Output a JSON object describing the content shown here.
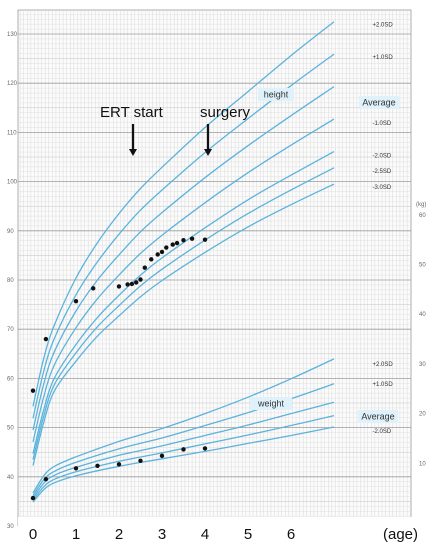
{
  "chart_data": {
    "type": "line",
    "x_ticks": [
      0,
      1,
      2,
      3,
      4,
      5,
      6
    ],
    "x_unit_label": "(age)",
    "height_axis": {
      "ylim": [
        30,
        130
      ],
      "ticks": [
        30,
        40,
        50,
        60,
        70,
        80,
        90,
        100,
        110,
        120,
        130
      ]
    },
    "weight_axis": {
      "unit": "(kg)",
      "ylim": [
        0,
        60
      ],
      "ticks": [
        10,
        20,
        30,
        40,
        50,
        60
      ]
    },
    "height_curves": {
      "label": "height",
      "series": [
        {
          "name": "+2.0SD",
          "x": [
            0,
            0.25,
            0.5,
            1,
            1.5,
            2,
            2.5,
            3,
            4,
            5,
            6,
            7
          ],
          "values": [
            54.3,
            64.1,
            70.9,
            80.4,
            87.6,
            93.5,
            98.6,
            102.9,
            111.0,
            118.3,
            125.6,
            132.5
          ]
        },
        {
          "name": "+1.0SD",
          "x": [
            0,
            0.25,
            0.5,
            1,
            1.5,
            2,
            2.5,
            3,
            4,
            5,
            6,
            7
          ],
          "values": [
            51.9,
            61.5,
            68.2,
            77.0,
            83.7,
            89.3,
            94.2,
            98.3,
            105.9,
            112.8,
            119.5,
            125.9
          ]
        },
        {
          "name": "Average",
          "x": [
            0,
            0.25,
            0.5,
            1,
            1.5,
            2,
            2.5,
            3,
            4,
            5,
            6,
            7
          ],
          "values": [
            49.5,
            58.9,
            65.5,
            73.7,
            80.0,
            85.1,
            89.8,
            93.7,
            100.8,
            107.3,
            113.4,
            119.3
          ]
        },
        {
          "name": "-1.0SD",
          "x": [
            0,
            0.25,
            0.5,
            1,
            1.5,
            2,
            2.5,
            3,
            4,
            5,
            6,
            7
          ],
          "values": [
            47.1,
            56.3,
            62.8,
            70.3,
            76.2,
            81.0,
            85.4,
            89.1,
            95.7,
            101.8,
            107.4,
            112.7
          ]
        },
        {
          "name": "-2.0SD",
          "x": [
            0,
            0.25,
            0.5,
            1,
            1.5,
            2,
            2.5,
            3,
            4,
            5,
            6,
            7
          ],
          "values": [
            44.7,
            53.7,
            60.1,
            66.9,
            72.4,
            76.9,
            81.0,
            84.5,
            90.6,
            96.3,
            101.3,
            106.1
          ]
        },
        {
          "name": "-2.5SD",
          "x": [
            0,
            0.25,
            0.5,
            1,
            1.5,
            2,
            2.5,
            3,
            4,
            5,
            6,
            7
          ],
          "values": [
            43.5,
            52.4,
            58.8,
            65.2,
            70.5,
            74.8,
            78.8,
            82.2,
            88.1,
            93.5,
            98.3,
            102.8
          ]
        },
        {
          "name": "-3.0SD",
          "x": [
            0,
            0.25,
            0.5,
            1,
            1.5,
            2,
            2.5,
            3,
            4,
            5,
            6,
            7
          ],
          "values": [
            42.3,
            51.1,
            57.5,
            63.5,
            68.6,
            72.7,
            76.6,
            79.9,
            85.6,
            90.8,
            95.3,
            99.5
          ]
        }
      ]
    },
    "weight_curves": {
      "label": "weight",
      "series": [
        {
          "name": "+2.0SD",
          "x": [
            0,
            0.25,
            0.5,
            1,
            2,
            3,
            4,
            5,
            6,
            7
          ],
          "values": [
            4.0,
            7.5,
            9.4,
            11.3,
            14.4,
            17.0,
            20.0,
            23.3,
            27.0,
            31.0
          ]
        },
        {
          "name": "+1.0SD",
          "x": [
            0,
            0.25,
            0.5,
            1,
            2,
            3,
            4,
            5,
            6,
            7
          ],
          "values": [
            3.5,
            6.7,
            8.4,
            10.2,
            12.9,
            15.1,
            17.6,
            20.2,
            23.0,
            26.0
          ]
        },
        {
          "name": "Average",
          "x": [
            0,
            0.25,
            0.5,
            1,
            2,
            3,
            4,
            5,
            6,
            7
          ],
          "values": [
            3.0,
            6.0,
            7.6,
            9.2,
            11.6,
            13.5,
            15.6,
            17.7,
            20.0,
            22.3
          ]
        },
        {
          "name": "-1.0SD",
          "x": [
            0,
            0.25,
            0.5,
            1,
            2,
            3,
            4,
            5,
            6,
            7
          ],
          "values": [
            2.6,
            5.3,
            6.8,
            8.3,
            10.4,
            12.1,
            13.9,
            15.7,
            17.6,
            19.6
          ]
        },
        {
          "name": "-2.0SD",
          "x": [
            0,
            0.25,
            0.5,
            1,
            2,
            3,
            4,
            5,
            6,
            7
          ],
          "values": [
            2.2,
            4.7,
            6.1,
            7.5,
            9.4,
            10.9,
            12.4,
            14.0,
            15.6,
            17.3
          ]
        }
      ]
    },
    "patient_height": {
      "x": [
        0,
        0.3,
        1.0,
        1.4,
        2.0,
        2.2,
        2.3,
        2.4,
        2.5,
        2.6,
        2.75,
        2.9,
        3.0,
        3.1,
        3.25,
        3.35,
        3.5,
        3.7,
        4.0
      ],
      "values": [
        57.5,
        68.0,
        75.7,
        78.3,
        78.7,
        79.1,
        79.2,
        79.5,
        80.1,
        82.5,
        84.2,
        85.2,
        85.7,
        86.6,
        87.2,
        87.5,
        88.1,
        88.4,
        88.2
      ]
    },
    "patient_weight": {
      "x": [
        0,
        0.3,
        1.0,
        1.5,
        2.0,
        2.5,
        3.0,
        3.5,
        4.0
      ],
      "values": [
        3.0,
        6.8,
        9.0,
        9.5,
        9.8,
        10.5,
        11.5,
        12.8,
        13.0
      ]
    },
    "annotations": [
      {
        "text": "ERT start",
        "x": 2.0
      },
      {
        "text": "surgery",
        "x": 3.25
      }
    ]
  }
}
